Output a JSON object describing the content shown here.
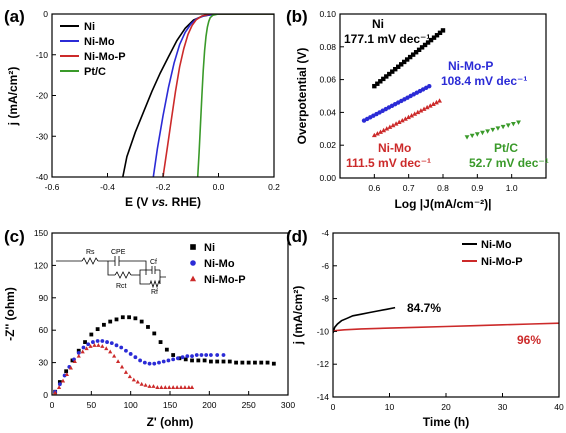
{
  "chart_data": [
    {
      "panel_label": "(a)",
      "type": "line",
      "xlabel_parts": [
        "E (V ",
        "vs.",
        " RHE)"
      ],
      "ylabel": "j (mA/cm²)",
      "xlim": [
        -0.6,
        0.2
      ],
      "ylim": [
        -40,
        0
      ],
      "xticks": [
        -0.6,
        -0.4,
        -0.2,
        0.0,
        0.2
      ],
      "xtick_labels": [
        "-0.6",
        "-0.4",
        "-0.2",
        "0.0",
        "0.2"
      ],
      "yticks": [
        0,
        -10,
        -20,
        -30,
        -40
      ],
      "ytick_labels": [
        "0",
        "-10",
        "-20",
        "-30",
        "-40"
      ],
      "legend_position": "top-left",
      "series": [
        {
          "name": "Ni",
          "color": "#000000",
          "x": [
            -0.345,
            -0.33,
            -0.3,
            -0.27,
            -0.24,
            -0.21,
            -0.18,
            -0.15,
            -0.12,
            -0.09,
            -0.06,
            -0.03,
            0.0,
            0.2
          ],
          "y": [
            -40,
            -35,
            -29,
            -24,
            -19,
            -14.5,
            -10.5,
            -6.5,
            -3.5,
            -1.5,
            -0.6,
            -0.2,
            0,
            0
          ]
        },
        {
          "name": "Ni-Mo",
          "color": "#2b2bd6",
          "x": [
            -0.235,
            -0.22,
            -0.2,
            -0.18,
            -0.16,
            -0.14,
            -0.12,
            -0.1,
            -0.08,
            -0.05,
            0.0,
            0.2
          ],
          "y": [
            -40,
            -33,
            -25,
            -18,
            -12,
            -7.5,
            -4.5,
            -2.5,
            -1.2,
            -0.4,
            0,
            0
          ]
        },
        {
          "name": "Ni-Mo-P",
          "color": "#cc2a2a",
          "x": [
            -0.2,
            -0.185,
            -0.17,
            -0.155,
            -0.14,
            -0.125,
            -0.11,
            -0.095,
            -0.08,
            -0.06,
            -0.03,
            0.2
          ],
          "y": [
            -40,
            -33,
            -26,
            -19,
            -13,
            -8.5,
            -5,
            -2.8,
            -1.4,
            -0.5,
            0,
            0
          ]
        },
        {
          "name": "Pt/C",
          "color": "#3a9a2a",
          "x": [
            -0.075,
            -0.07,
            -0.065,
            -0.06,
            -0.055,
            -0.05,
            -0.045,
            -0.04,
            -0.035,
            -0.03,
            -0.02,
            0.0,
            0.2
          ],
          "y": [
            -40,
            -34,
            -27,
            -20,
            -14,
            -9,
            -5.5,
            -3.2,
            -1.8,
            -0.9,
            -0.3,
            0,
            0
          ]
        }
      ]
    },
    {
      "panel_label": "(b)",
      "type": "scatter",
      "xlabel": "Log |J(mA/cm⁻²)|",
      "ylabel": "Overpotential (V)",
      "xlim": [
        0.5,
        1.1
      ],
      "ylim": [
        0.0,
        0.1
      ],
      "xticks": [
        0.6,
        0.7,
        0.8,
        0.9,
        1.0
      ],
      "xtick_labels": [
        "0.6",
        "0.7",
        "0.8",
        "0.9",
        "1.0"
      ],
      "yticks": [
        0.0,
        0.02,
        0.04,
        0.06,
        0.08,
        0.1
      ],
      "ytick_labels": [
        "0.00",
        "0.02",
        "0.04",
        "0.06",
        "0.08",
        "0.10"
      ],
      "series": [
        {
          "name": "Ni",
          "slope_label": "177.1 mV dec⁻¹",
          "color": "#000000",
          "marker": "square",
          "x_start": 0.6,
          "x_end": 0.8,
          "y_start": 0.056,
          "y_end": 0.09,
          "n": 24
        },
        {
          "name": "Ni-Mo-P",
          "slope_label": "108.4 mV dec⁻¹",
          "color": "#2b2bd6",
          "marker": "circle",
          "x_start": 0.57,
          "x_end": 0.76,
          "y_start": 0.035,
          "y_end": 0.056,
          "n": 22
        },
        {
          "name": "Ni-Mo",
          "slope_label": "111.5 mV dec⁻¹",
          "color": "#cc2a2a",
          "marker": "triangle-up",
          "x_start": 0.6,
          "x_end": 0.79,
          "y_start": 0.026,
          "y_end": 0.047,
          "n": 22
        },
        {
          "name": "Pt/C",
          "slope_label": "52.7 mV dec⁻¹",
          "color": "#3a9a2a",
          "marker": "triangle-down",
          "x_start": 0.87,
          "x_end": 1.02,
          "y_start": 0.025,
          "y_end": 0.034,
          "n": 11
        }
      ]
    },
    {
      "panel_label": "(c)",
      "type": "scatter",
      "xlabel": "Z' (ohm)",
      "ylabel": "-Z'' (ohm)",
      "xlim": [
        0,
        300
      ],
      "ylim": [
        0,
        150
      ],
      "xticks": [
        0,
        50,
        100,
        150,
        200,
        250,
        300
      ],
      "xtick_labels": [
        "0",
        "50",
        "100",
        "150",
        "200",
        "250",
        "300"
      ],
      "yticks": [
        0,
        30,
        60,
        90,
        120,
        150
      ],
      "ytick_labels": [
        "0",
        "30",
        "60",
        "90",
        "120",
        "150"
      ],
      "legend_position": "top-right",
      "circuit_labels": {
        "rs": "Rs",
        "cpe": "CPE",
        "rct": "Rct",
        "cf": "Cf",
        "rf": "Rf"
      },
      "series": [
        {
          "name": "Ni",
          "color": "#000000",
          "marker": "square",
          "x": [
            4,
            10,
            18,
            26,
            34,
            42,
            50,
            58,
            66,
            74,
            82,
            90,
            98,
            106,
            114,
            122,
            130,
            138,
            146,
            154,
            162,
            170,
            178,
            186,
            194,
            202,
            210,
            218,
            226,
            234,
            242,
            250,
            258,
            266,
            274,
            282
          ],
          "y": [
            3,
            12,
            22,
            32,
            41,
            49,
            56,
            61,
            65,
            68,
            70,
            72,
            72,
            71,
            68,
            63,
            57,
            49,
            42,
            37,
            34,
            33,
            32,
            32,
            32,
            31,
            31,
            31,
            31,
            30,
            30,
            30,
            30,
            30,
            30,
            29
          ]
        },
        {
          "name": "Ni-Mo",
          "color": "#2b2bd6",
          "marker": "circle",
          "x": [
            4,
            10,
            16,
            22,
            28,
            34,
            40,
            46,
            52,
            58,
            64,
            70,
            76,
            82,
            88,
            94,
            100,
            106,
            112,
            118,
            124,
            130,
            136,
            142,
            148,
            154,
            160,
            166,
            172,
            178,
            184,
            190,
            196,
            202,
            210,
            218
          ],
          "y": [
            3,
            10,
            18,
            26,
            33,
            39,
            44,
            47,
            49,
            50,
            50,
            49,
            48,
            46,
            44,
            41,
            38,
            35,
            32,
            30,
            29,
            29,
            30,
            31,
            32,
            33,
            34,
            35,
            36,
            36,
            37,
            37,
            37,
            37,
            37,
            37
          ]
        },
        {
          "name": "Ni-Mo-P",
          "color": "#cc2a2a",
          "marker": "triangle-up",
          "x": [
            4,
            9,
            14,
            19,
            24,
            29,
            34,
            39,
            44,
            49,
            54,
            59,
            64,
            69,
            74,
            79,
            84,
            89,
            94,
            99,
            104,
            109,
            114,
            119,
            124,
            129,
            134,
            139,
            144,
            149,
            154,
            159,
            164,
            169,
            174,
            178
          ],
          "y": [
            2,
            7,
            13,
            19,
            25,
            31,
            36,
            40,
            43,
            45,
            46,
            46,
            45,
            43,
            40,
            36,
            31,
            26,
            21,
            17,
            14,
            12,
            10,
            9,
            8,
            8,
            7,
            7,
            7,
            7,
            7,
            7,
            7,
            7,
            7,
            7
          ]
        }
      ]
    },
    {
      "panel_label": "(d)",
      "type": "line",
      "xlabel": "Time (h)",
      "ylabel": "j (mA/cm²)",
      "xlim": [
        0,
        40
      ],
      "ylim": [
        -14,
        -4
      ],
      "xticks": [
        0,
        10,
        20,
        30,
        40
      ],
      "xtick_labels": [
        "0",
        "10",
        "20",
        "30",
        "40"
      ],
      "yticks": [
        -4,
        -6,
        -8,
        -10,
        -12,
        -14
      ],
      "ytick_labels": [
        "-4",
        "-6",
        "-8",
        "-10",
        "-12",
        "-14"
      ],
      "legend_position": "top-right",
      "series": [
        {
          "name": "Ni-Mo",
          "color": "#000000",
          "retention": "84.7%",
          "x": [
            0,
            0.3,
            0.8,
            1.5,
            2.5,
            3.5,
            5,
            6.5,
            8,
            9.5,
            11
          ],
          "y": [
            -10.1,
            -9.75,
            -9.55,
            -9.35,
            -9.2,
            -9.05,
            -8.95,
            -8.85,
            -8.75,
            -8.65,
            -8.55
          ]
        },
        {
          "name": "Ni-Mo-P",
          "color": "#cc2a2a",
          "retention": "96%",
          "x": [
            0,
            0.5,
            2,
            5,
            10,
            15,
            20,
            25,
            30,
            35,
            40
          ],
          "y": [
            -10.0,
            -9.95,
            -9.9,
            -9.85,
            -9.8,
            -9.75,
            -9.7,
            -9.65,
            -9.6,
            -9.55,
            -9.5
          ]
        }
      ]
    }
  ]
}
